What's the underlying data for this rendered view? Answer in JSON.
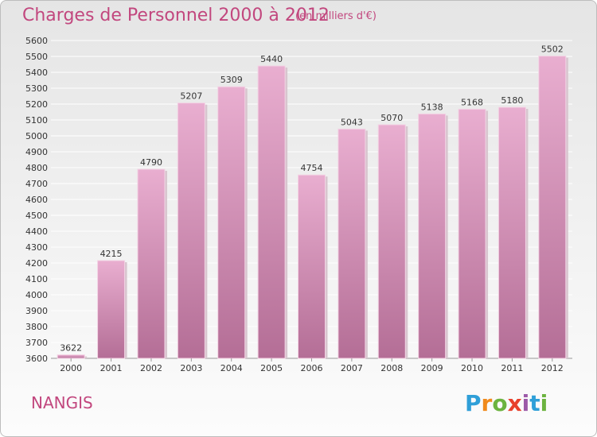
{
  "title": "Charges de Personnel 2000 à 2012",
  "subtitle": "(en milliers d'€)",
  "commune": "NANGIS",
  "brand": {
    "letters": [
      "P",
      "r",
      "o",
      "x",
      "i",
      "t",
      "i"
    ],
    "colors": [
      "#2f9fd8",
      "#f08a1c",
      "#6cb33f",
      "#e8412c",
      "#9c5aa8",
      "#2f9fd8",
      "#6cb33f"
    ]
  },
  "colors": {
    "bar_top": "#e9aed0",
    "bar_bottom": "#b46e96",
    "text": "#c2477e",
    "grid": "#ffffff",
    "axis_text": "#333333"
  },
  "chart_data": {
    "type": "bar",
    "categories": [
      "2000",
      "2001",
      "2002",
      "2003",
      "2004",
      "2005",
      "2006",
      "2007",
      "2008",
      "2009",
      "2010",
      "2011",
      "2012"
    ],
    "values": [
      3622,
      4215,
      4790,
      5207,
      5309,
      5440,
      4754,
      5043,
      5070,
      5138,
      5168,
      5180,
      5502
    ],
    "ylim": [
      3600,
      5600
    ],
    "yticks": [
      3600,
      3700,
      3800,
      3900,
      4000,
      4100,
      4200,
      4300,
      4400,
      4500,
      4600,
      4700,
      4800,
      4900,
      5000,
      5100,
      5200,
      5300,
      5400,
      5500,
      5600
    ],
    "grid": true
  }
}
